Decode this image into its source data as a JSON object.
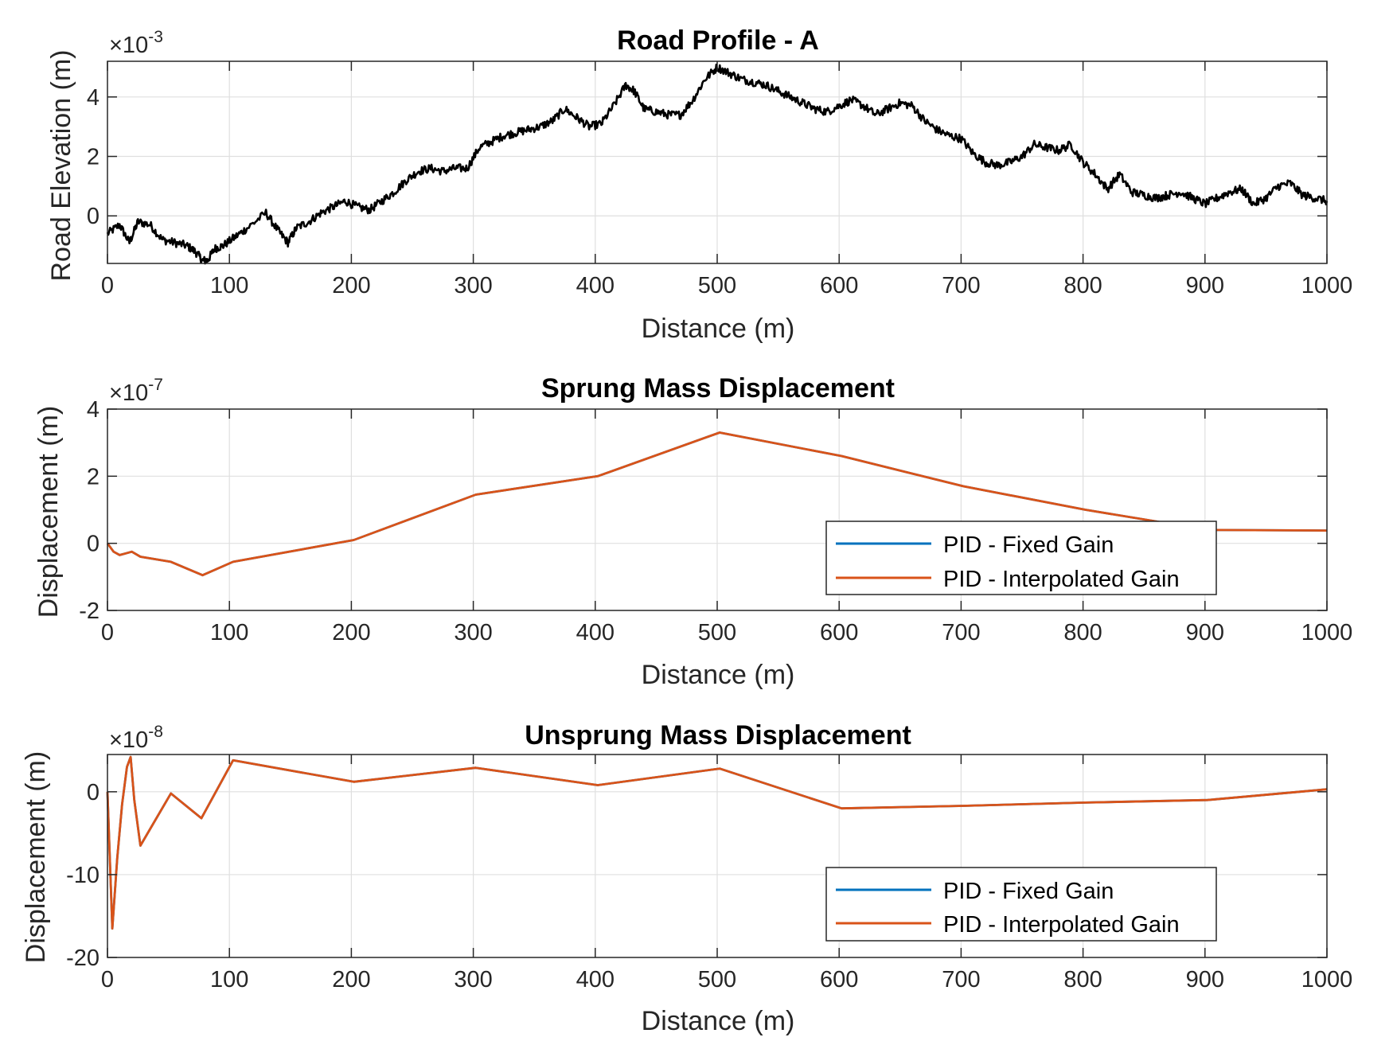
{
  "colors": {
    "road": "#000000",
    "fixed_gain": "#0072BD",
    "interpolated_gain": "#D95319",
    "grid": "#DFDFDF",
    "axis": "#262626"
  },
  "chart_data": [
    {
      "type": "line",
      "title": "Road Profile - A",
      "xlabel": "Distance (m)",
      "ylabel": "Road Elevation (m)",
      "exponent_base": "×10",
      "exponent_power": "-3",
      "xlim": [
        0,
        1000
      ],
      "ylim": [
        -1.6,
        5.2
      ],
      "xticks": [
        0,
        100,
        200,
        300,
        400,
        500,
        600,
        700,
        800,
        900,
        1000
      ],
      "yticks": [
        0,
        2,
        4
      ],
      "grid": true,
      "series": [
        {
          "color": "#000000",
          "noisy": true,
          "x": [
            0,
            10,
            18,
            25,
            35,
            45,
            55,
            65,
            72,
            78,
            82,
            88,
            95,
            105,
            115,
            130,
            140,
            148,
            155,
            165,
            175,
            185,
            195,
            205,
            215,
            225,
            235,
            245,
            255,
            265,
            275,
            285,
            295,
            305,
            315,
            325,
            335,
            345,
            355,
            365,
            375,
            385,
            395,
            405,
            415,
            425,
            432,
            440,
            450,
            460,
            470,
            480,
            490,
            500,
            510,
            520,
            530,
            540,
            550,
            560,
            570,
            580,
            590,
            600,
            610,
            620,
            630,
            640,
            650,
            660,
            670,
            680,
            690,
            700,
            710,
            720,
            730,
            740,
            750,
            760,
            770,
            780,
            790,
            800,
            810,
            820,
            830,
            840,
            850,
            860,
            870,
            880,
            890,
            900,
            910,
            920,
            930,
            940,
            950,
            960,
            970,
            980,
            990,
            1000
          ],
          "y": [
            -0.6,
            -0.3,
            -0.9,
            -0.2,
            -0.3,
            -0.8,
            -0.9,
            -1.0,
            -1.2,
            -1.5,
            -1.5,
            -1.1,
            -1.0,
            -0.7,
            -0.4,
            0.1,
            -0.5,
            -0.9,
            -0.4,
            -0.2,
            0.1,
            0.3,
            0.5,
            0.3,
            0.2,
            0.5,
            0.8,
            1.2,
            1.5,
            1.6,
            1.5,
            1.6,
            1.6,
            2.3,
            2.5,
            2.7,
            2.8,
            2.9,
            3.0,
            3.2,
            3.6,
            3.3,
            3.0,
            3.1,
            3.7,
            4.4,
            4.2,
            3.6,
            3.5,
            3.4,
            3.4,
            3.9,
            4.6,
            5.0,
            4.8,
            4.6,
            4.5,
            4.4,
            4.2,
            4.0,
            3.8,
            3.6,
            3.5,
            3.7,
            3.9,
            3.7,
            3.4,
            3.6,
            3.8,
            3.7,
            3.2,
            2.9,
            2.7,
            2.6,
            2.1,
            1.8,
            1.7,
            1.8,
            2.0,
            2.4,
            2.3,
            2.2,
            2.4,
            1.8,
            1.4,
            0.9,
            1.4,
            0.8,
            0.7,
            0.6,
            0.7,
            0.8,
            0.6,
            0.4,
            0.6,
            0.8,
            0.9,
            0.4,
            0.6,
            1.0,
            1.1,
            0.7,
            0.6,
            0.5
          ]
        }
      ]
    },
    {
      "type": "line",
      "title": "Sprung Mass Displacement",
      "xlabel": "Distance (m)",
      "ylabel": "Displacement (m)",
      "exponent_base": "×10",
      "exponent_power": "-7",
      "xlim": [
        0,
        1000
      ],
      "ylim": [
        -2,
        4
      ],
      "xticks": [
        0,
        100,
        200,
        300,
        400,
        500,
        600,
        700,
        800,
        900,
        1000
      ],
      "yticks": [
        -2,
        0,
        2,
        4
      ],
      "grid": true,
      "legend_position": "bottom-right",
      "series": [
        {
          "name": "PID - Fixed Gain",
          "color": "#0072BD",
          "x": [
            0,
            5,
            10,
            15,
            20,
            27,
            52,
            78,
            103,
            202,
            302,
            402,
            502,
            602,
            702,
            802,
            902,
            1000
          ],
          "y": [
            0.0,
            -0.25,
            -0.35,
            -0.3,
            -0.25,
            -0.4,
            -0.55,
            -0.95,
            -0.55,
            0.1,
            1.45,
            2.0,
            3.3,
            2.6,
            1.7,
            1.0,
            0.4,
            0.38
          ]
        },
        {
          "name": "PID - Interpolated Gain",
          "color": "#D95319",
          "x": [
            0,
            5,
            10,
            15,
            20,
            27,
            52,
            78,
            103,
            202,
            302,
            402,
            502,
            602,
            702,
            802,
            902,
            1000
          ],
          "y": [
            0.0,
            -0.25,
            -0.35,
            -0.3,
            -0.25,
            -0.4,
            -0.55,
            -0.95,
            -0.55,
            0.1,
            1.45,
            2.0,
            3.3,
            2.6,
            1.7,
            1.0,
            0.4,
            0.38
          ]
        }
      ]
    },
    {
      "type": "line",
      "title": "Unsprung Mass Displacement",
      "xlabel": "Distance (m)",
      "ylabel": "Displacement (m)",
      "exponent_base": "×10",
      "exponent_power": "-8",
      "xlim": [
        0,
        1000
      ],
      "ylim": [
        -20,
        4.5
      ],
      "xticks": [
        0,
        100,
        200,
        300,
        400,
        500,
        600,
        700,
        800,
        900,
        1000
      ],
      "yticks": [
        -20,
        -10,
        0
      ],
      "grid": true,
      "legend_position": "bottom-right",
      "series": [
        {
          "name": "PID - Fixed Gain",
          "color": "#0072BD",
          "x": [
            0,
            4,
            8,
            12,
            16,
            19,
            22,
            27,
            52,
            77,
            103,
            202,
            302,
            402,
            502,
            602,
            702,
            802,
            902,
            1000
          ],
          "y": [
            0,
            -16.5,
            -8,
            -1.5,
            3,
            4.2,
            -1,
            -6.5,
            -0.2,
            -3.2,
            3.8,
            1.2,
            2.9,
            0.8,
            2.8,
            -2.0,
            -1.7,
            -1.3,
            -1.0,
            0.3
          ]
        },
        {
          "name": "PID - Interpolated Gain",
          "color": "#D95319",
          "x": [
            0,
            4,
            8,
            12,
            16,
            19,
            22,
            27,
            52,
            77,
            103,
            202,
            302,
            402,
            502,
            602,
            702,
            802,
            902,
            1000
          ],
          "y": [
            0,
            -16.5,
            -8,
            -1.5,
            3,
            4.2,
            -1,
            -6.5,
            -0.2,
            -3.2,
            3.8,
            1.2,
            2.9,
            0.8,
            2.8,
            -2.0,
            -1.7,
            -1.3,
            -1.0,
            0.3
          ]
        }
      ]
    }
  ]
}
